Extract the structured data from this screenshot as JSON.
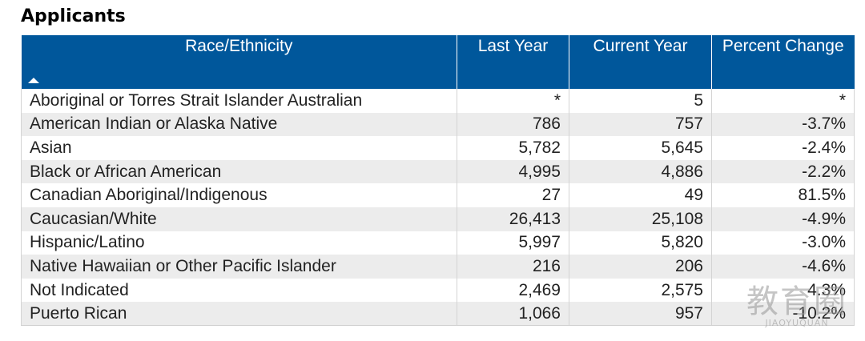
{
  "title": "Applicants",
  "table": {
    "headers": {
      "race": "Race/Ethnicity",
      "last_year": "Last Year",
      "current_year": "Current Year",
      "percent_change": "Percent Change"
    },
    "sort_icon": "sort-ascending-arrow",
    "rows": [
      {
        "race": "Aboriginal or Torres Strait Islander Australian",
        "last_year": "*",
        "current_year": "5",
        "percent_change": "*"
      },
      {
        "race": "American Indian or Alaska Native",
        "last_year": "786",
        "current_year": "757",
        "percent_change": "-3.7%"
      },
      {
        "race": "Asian",
        "last_year": "5,782",
        "current_year": "5,645",
        "percent_change": "-2.4%"
      },
      {
        "race": "Black or African American",
        "last_year": "4,995",
        "current_year": "4,886",
        "percent_change": "-2.2%"
      },
      {
        "race": "Canadian Aboriginal/Indigenous",
        "last_year": "27",
        "current_year": "49",
        "percent_change": "81.5%"
      },
      {
        "race": "Caucasian/White",
        "last_year": "26,413",
        "current_year": "25,108",
        "percent_change": "-4.9%"
      },
      {
        "race": "Hispanic/Latino",
        "last_year": "5,997",
        "current_year": "5,820",
        "percent_change": "-3.0%"
      },
      {
        "race": "Native Hawaiian or Other Pacific Islander",
        "last_year": "216",
        "current_year": "206",
        "percent_change": "-4.6%"
      },
      {
        "race": "Not Indicated",
        "last_year": "2,469",
        "current_year": "2,575",
        "percent_change": "4.3%"
      },
      {
        "race": "Puerto Rican",
        "last_year": "1,066",
        "current_year": "957",
        "percent_change": "-10.2%"
      }
    ]
  },
  "colors": {
    "header_bg": "#00579b",
    "header_text": "#ffffff",
    "row_alt": "#ececec"
  },
  "watermark": {
    "main": "教育圈",
    "sub": "JIAOYUQUAN"
  }
}
